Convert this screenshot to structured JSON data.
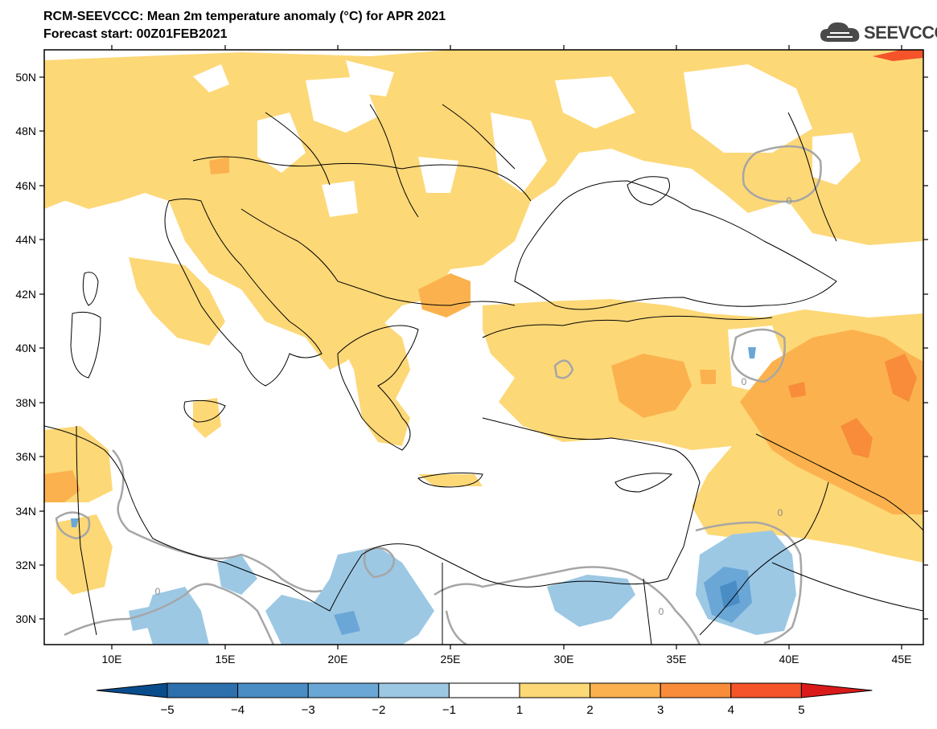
{
  "header": {
    "title": "RCM-SEEVCCC: Mean 2m temperature anomaly (°C) for APR 2021",
    "subtitle": "Forecast start: 00Z01FEB2021"
  },
  "logo": {
    "text": "SEEVCCC",
    "icon": "cloud-icon"
  },
  "map": {
    "lat_labels": [
      "50N",
      "48N",
      "46N",
      "44N",
      "42N",
      "40N",
      "38N",
      "36N",
      "34N",
      "32N",
      "30N"
    ],
    "lon_labels": [
      "10E",
      "15E",
      "20E",
      "25E",
      "30E",
      "35E",
      "40E",
      "45E"
    ],
    "contour_labels": [
      "0",
      "0",
      "0",
      "0",
      "0"
    ]
  },
  "colorbar": {
    "labels": [
      "-5",
      "-4",
      "-3",
      "-2",
      "-1",
      "1",
      "2",
      "3",
      "4",
      "5"
    ],
    "colors": [
      "#084c8c",
      "#2e6fad",
      "#4a8cc4",
      "#6aa7d6",
      "#9cc8e4",
      "#ffffff",
      "#fdd877",
      "#fbb24e",
      "#f88c3a",
      "#f5532a",
      "#da1a1a"
    ]
  }
}
